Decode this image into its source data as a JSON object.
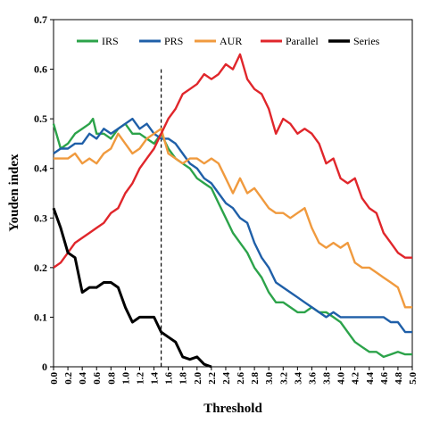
{
  "chart_data": {
    "type": "line",
    "xlabel": "Threshold",
    "ylabel": "Youden index",
    "xlim": [
      0.0,
      5.0
    ],
    "ylim": [
      0.0,
      0.7
    ],
    "x_ticks": [
      "0.0",
      "0.2",
      "0.4",
      "0.6",
      "0.8",
      "1.0",
      "1.2",
      "1.4",
      "1.6",
      "1.8",
      "2.0",
      "2.2",
      "2.4",
      "2.6",
      "2.8",
      "3.0",
      "3.2",
      "3.4",
      "3.6",
      "3.8",
      "4.0",
      "4.2",
      "4.4",
      "4.6",
      "4.8",
      "5.0"
    ],
    "y_ticks": [
      "0",
      "0.1",
      "0.2",
      "0.3",
      "0.4",
      "0.5",
      "0.6",
      "0.7"
    ],
    "vline_x": 1.5,
    "legend_position": "top",
    "series": [
      {
        "name": "IRS",
        "color": "#2ca34a",
        "x": [
          0.0,
          0.1,
          0.2,
          0.3,
          0.4,
          0.5,
          0.55,
          0.6,
          0.7,
          0.8,
          0.9,
          1.0,
          1.1,
          1.2,
          1.3,
          1.4,
          1.5,
          1.6,
          1.7,
          1.8,
          1.9,
          2.0,
          2.1,
          2.2,
          2.3,
          2.4,
          2.5,
          2.6,
          2.7,
          2.8,
          2.9,
          3.0,
          3.1,
          3.2,
          3.3,
          3.4,
          3.5,
          3.6,
          3.7,
          3.8,
          3.9,
          4.0,
          4.1,
          4.2,
          4.3,
          4.4,
          4.5,
          4.6,
          4.7,
          4.8,
          4.9,
          5.0
        ],
        "values": [
          0.49,
          0.44,
          0.45,
          0.47,
          0.48,
          0.49,
          0.5,
          0.47,
          0.47,
          0.46,
          0.48,
          0.49,
          0.47,
          0.47,
          0.46,
          0.45,
          0.47,
          0.44,
          0.42,
          0.41,
          0.4,
          0.38,
          0.37,
          0.36,
          0.33,
          0.3,
          0.27,
          0.25,
          0.23,
          0.2,
          0.18,
          0.15,
          0.13,
          0.13,
          0.12,
          0.11,
          0.11,
          0.12,
          0.11,
          0.11,
          0.1,
          0.09,
          0.07,
          0.05,
          0.04,
          0.03,
          0.03,
          0.02,
          0.025,
          0.03,
          0.025,
          0.025
        ]
      },
      {
        "name": "PRS",
        "color": "#1f5fa8",
        "x": [
          0.0,
          0.1,
          0.2,
          0.3,
          0.4,
          0.5,
          0.6,
          0.7,
          0.8,
          0.9,
          1.0,
          1.1,
          1.2,
          1.3,
          1.4,
          1.5,
          1.6,
          1.7,
          1.8,
          1.9,
          2.0,
          2.1,
          2.2,
          2.3,
          2.4,
          2.5,
          2.6,
          2.7,
          2.8,
          2.9,
          3.0,
          3.1,
          3.2,
          3.3,
          3.4,
          3.5,
          3.6,
          3.7,
          3.8,
          3.9,
          4.0,
          4.1,
          4.2,
          4.3,
          4.4,
          4.5,
          4.6,
          4.7,
          4.8,
          4.9,
          5.0
        ],
        "values": [
          0.43,
          0.44,
          0.44,
          0.45,
          0.45,
          0.47,
          0.46,
          0.48,
          0.47,
          0.48,
          0.49,
          0.5,
          0.48,
          0.49,
          0.47,
          0.46,
          0.46,
          0.45,
          0.43,
          0.41,
          0.4,
          0.38,
          0.37,
          0.35,
          0.33,
          0.32,
          0.3,
          0.29,
          0.25,
          0.22,
          0.2,
          0.17,
          0.16,
          0.15,
          0.14,
          0.13,
          0.12,
          0.11,
          0.1,
          0.11,
          0.1,
          0.1,
          0.1,
          0.1,
          0.1,
          0.1,
          0.1,
          0.09,
          0.09,
          0.07,
          0.07
        ]
      },
      {
        "name": "AUR",
        "color": "#f09a3e",
        "x": [
          0.0,
          0.1,
          0.2,
          0.3,
          0.4,
          0.5,
          0.6,
          0.7,
          0.8,
          0.9,
          1.0,
          1.1,
          1.2,
          1.3,
          1.4,
          1.5,
          1.6,
          1.7,
          1.8,
          1.9,
          2.0,
          2.1,
          2.2,
          2.3,
          2.4,
          2.5,
          2.6,
          2.7,
          2.8,
          2.9,
          3.0,
          3.1,
          3.2,
          3.3,
          3.4,
          3.5,
          3.6,
          3.7,
          3.8,
          3.9,
          4.0,
          4.1,
          4.2,
          4.3,
          4.4,
          4.5,
          4.6,
          4.7,
          4.8,
          4.9,
          5.0
        ],
        "values": [
          0.42,
          0.42,
          0.42,
          0.43,
          0.41,
          0.42,
          0.41,
          0.43,
          0.44,
          0.47,
          0.45,
          0.43,
          0.44,
          0.46,
          0.47,
          0.48,
          0.43,
          0.42,
          0.41,
          0.42,
          0.42,
          0.41,
          0.42,
          0.41,
          0.38,
          0.35,
          0.38,
          0.35,
          0.36,
          0.34,
          0.32,
          0.31,
          0.31,
          0.3,
          0.31,
          0.32,
          0.28,
          0.25,
          0.24,
          0.25,
          0.24,
          0.25,
          0.21,
          0.2,
          0.2,
          0.19,
          0.18,
          0.17,
          0.16,
          0.12,
          0.12
        ]
      },
      {
        "name": "Parallel",
        "color": "#e0262b",
        "x": [
          0.0,
          0.1,
          0.2,
          0.3,
          0.4,
          0.5,
          0.6,
          0.7,
          0.8,
          0.9,
          1.0,
          1.1,
          1.2,
          1.3,
          1.4,
          1.5,
          1.6,
          1.7,
          1.8,
          1.9,
          2.0,
          2.1,
          2.2,
          2.3,
          2.4,
          2.5,
          2.6,
          2.7,
          2.8,
          2.9,
          3.0,
          3.1,
          3.2,
          3.3,
          3.4,
          3.5,
          3.6,
          3.7,
          3.8,
          3.9,
          4.0,
          4.1,
          4.2,
          4.3,
          4.4,
          4.5,
          4.6,
          4.7,
          4.8,
          4.9,
          5.0
        ],
        "values": [
          0.2,
          0.21,
          0.23,
          0.25,
          0.26,
          0.27,
          0.28,
          0.29,
          0.31,
          0.32,
          0.35,
          0.37,
          0.4,
          0.42,
          0.44,
          0.47,
          0.5,
          0.52,
          0.55,
          0.56,
          0.57,
          0.59,
          0.58,
          0.59,
          0.61,
          0.6,
          0.63,
          0.58,
          0.56,
          0.55,
          0.52,
          0.47,
          0.5,
          0.49,
          0.47,
          0.48,
          0.47,
          0.45,
          0.41,
          0.42,
          0.38,
          0.37,
          0.38,
          0.34,
          0.32,
          0.31,
          0.27,
          0.25,
          0.23,
          0.22,
          0.22
        ]
      },
      {
        "name": "Series",
        "color": "#000000",
        "x": [
          0.0,
          0.1,
          0.2,
          0.3,
          0.4,
          0.5,
          0.6,
          0.7,
          0.8,
          0.9,
          1.0,
          1.1,
          1.2,
          1.3,
          1.4,
          1.5,
          1.6,
          1.7,
          1.8,
          1.9,
          2.0,
          2.1,
          2.2
        ],
        "values": [
          0.32,
          0.28,
          0.23,
          0.22,
          0.15,
          0.16,
          0.16,
          0.17,
          0.17,
          0.16,
          0.12,
          0.09,
          0.1,
          0.1,
          0.1,
          0.07,
          0.06,
          0.05,
          0.02,
          0.015,
          0.02,
          0.005,
          0.0
        ]
      }
    ]
  }
}
